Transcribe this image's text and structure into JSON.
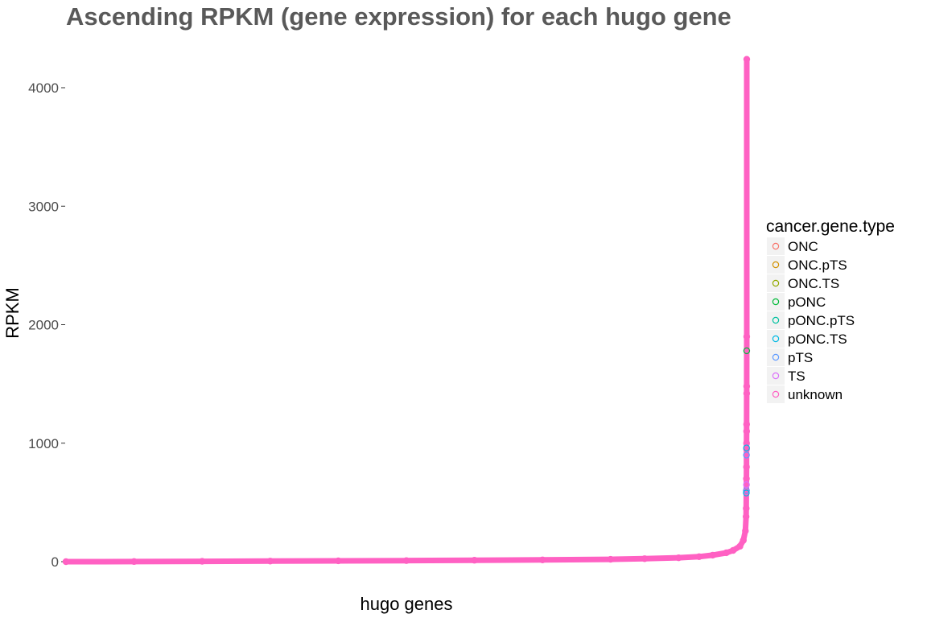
{
  "chart_data": {
    "type": "scatter",
    "title": "Ascending RPKM (gene expression) for each hugo gene",
    "xlabel": "hugo genes",
    "ylabel": "RPKM",
    "ylim": [
      -20,
      4300
    ],
    "y_ticks": [
      0,
      1000,
      2000,
      3000,
      4000
    ],
    "x_ticks": [],
    "grid": false,
    "legend": {
      "title": "cancer.gene.type",
      "position": "right",
      "entries": [
        {
          "label": "ONC",
          "color": "#F8766D"
        },
        {
          "label": "ONC.pTS",
          "color": "#D39200"
        },
        {
          "label": "ONC.TS",
          "color": "#93AA00"
        },
        {
          "label": "pONC",
          "color": "#00BA38"
        },
        {
          "label": "pONC.pTS",
          "color": "#00C19F"
        },
        {
          "label": "pONC.TS",
          "color": "#00B9E3"
        },
        {
          "label": "pTS",
          "color": "#619CFF"
        },
        {
          "label": "TS",
          "color": "#DB72FB"
        },
        {
          "label": "unknown",
          "color": "#FF61C3"
        }
      ]
    },
    "series": [
      {
        "name": "unknown",
        "color": "#FF61C3",
        "points": [
          {
            "rank": 0.0,
            "rpkm": 0
          },
          {
            "rank": 0.1,
            "rpkm": 1
          },
          {
            "rank": 0.2,
            "rpkm": 3
          },
          {
            "rank": 0.3,
            "rpkm": 5
          },
          {
            "rank": 0.4,
            "rpkm": 7
          },
          {
            "rank": 0.5,
            "rpkm": 9
          },
          {
            "rank": 0.6,
            "rpkm": 12
          },
          {
            "rank": 0.7,
            "rpkm": 15
          },
          {
            "rank": 0.8,
            "rpkm": 20
          },
          {
            "rank": 0.85,
            "rpkm": 25
          },
          {
            "rank": 0.9,
            "rpkm": 33
          },
          {
            "rank": 0.93,
            "rpkm": 42
          },
          {
            "rank": 0.95,
            "rpkm": 55
          },
          {
            "rank": 0.97,
            "rpkm": 75
          },
          {
            "rank": 0.98,
            "rpkm": 95
          },
          {
            "rank": 0.99,
            "rpkm": 130
          },
          {
            "rank": 0.995,
            "rpkm": 180
          },
          {
            "rank": 0.998,
            "rpkm": 260
          },
          {
            "rank": 0.999,
            "rpkm": 380
          },
          {
            "rank": 0.9992,
            "rpkm": 450
          },
          {
            "rank": 0.9994,
            "rpkm": 600
          },
          {
            "rank": 0.9995,
            "rpkm": 700
          },
          {
            "rank": 0.9996,
            "rpkm": 800
          },
          {
            "rank": 0.9997,
            "rpkm": 950
          },
          {
            "rank": 0.9997,
            "rpkm": 1000
          },
          {
            "rank": 0.9998,
            "rpkm": 1100
          },
          {
            "rank": 0.9998,
            "rpkm": 1160
          },
          {
            "rank": 0.9999,
            "rpkm": 1420
          },
          {
            "rank": 0.9999,
            "rpkm": 1480
          },
          {
            "rank": 0.99995,
            "rpkm": 1900
          },
          {
            "rank": 1.0,
            "rpkm": 4240
          }
        ]
      },
      {
        "name": "pONC",
        "color": "#00BA38",
        "points": [
          {
            "rank": 0.99992,
            "rpkm": 1780
          }
        ]
      },
      {
        "name": "pTS",
        "color": "#619CFF",
        "points": [
          {
            "rank": 0.9995,
            "rpkm": 600
          },
          {
            "rank": 0.9996,
            "rpkm": 900
          }
        ]
      },
      {
        "name": "pONC.TS",
        "color": "#00B9E3",
        "points": [
          {
            "rank": 0.9994,
            "rpkm": 580
          },
          {
            "rank": 0.9997,
            "rpkm": 960
          }
        ]
      },
      {
        "name": "TS",
        "color": "#DB72FB",
        "points": [
          {
            "rank": 0.9996,
            "rpkm": 650
          }
        ]
      }
    ]
  }
}
